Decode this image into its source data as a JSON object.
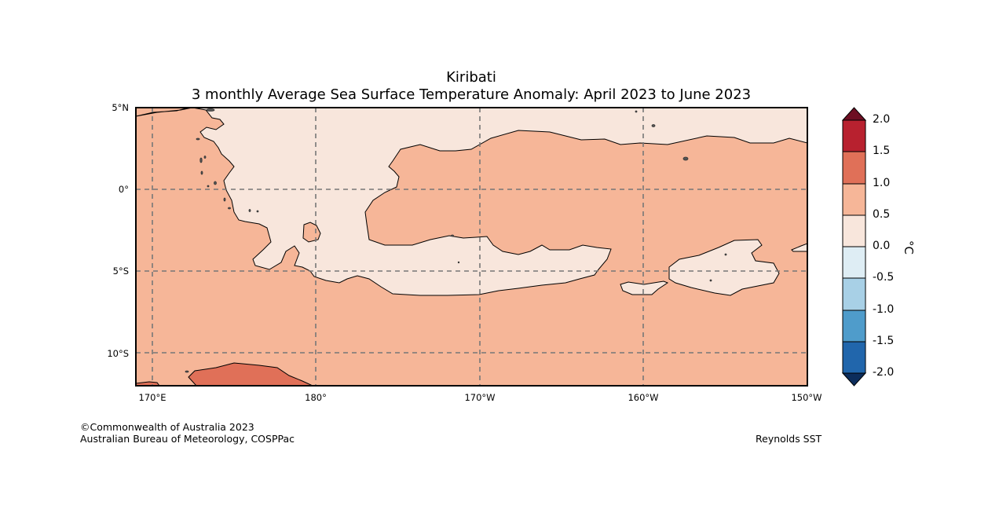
{
  "header": {
    "title": "Kiribati",
    "subtitle": "3 monthly Average Sea Surface Temperature Anomaly: April 2023 to June 2023"
  },
  "map": {
    "lat_labels": [
      "5°N",
      "0°",
      "5°S",
      "10°S"
    ],
    "lon_labels": [
      "170°E",
      "180°",
      "170°W",
      "160°W",
      "150°W"
    ],
    "anomaly_colors": {
      "c_0_05": "#f8e6dc",
      "c_05_10": "#f6b698",
      "c_10_15": "#e07058",
      "land": "#555555"
    }
  },
  "colorbar": {
    "unit": "°C",
    "labels": [
      "2.0",
      "1.5",
      "1.0",
      "0.5",
      "0.0",
      "-0.5",
      "-1.0",
      "-1.5",
      "-2.0"
    ],
    "colors": [
      "#6e0f23",
      "#b8212f",
      "#e07058",
      "#f6b698",
      "#f8e6dc",
      "#deedf4",
      "#a8d0e6",
      "#4f9ccb",
      "#2166ac",
      "#0c2d5c"
    ]
  },
  "footer": {
    "copyright": "©Commonwealth of Australia 2023",
    "agency": "Australian Bureau of Meteorology, COSPPac",
    "source": "Reynolds SST"
  }
}
